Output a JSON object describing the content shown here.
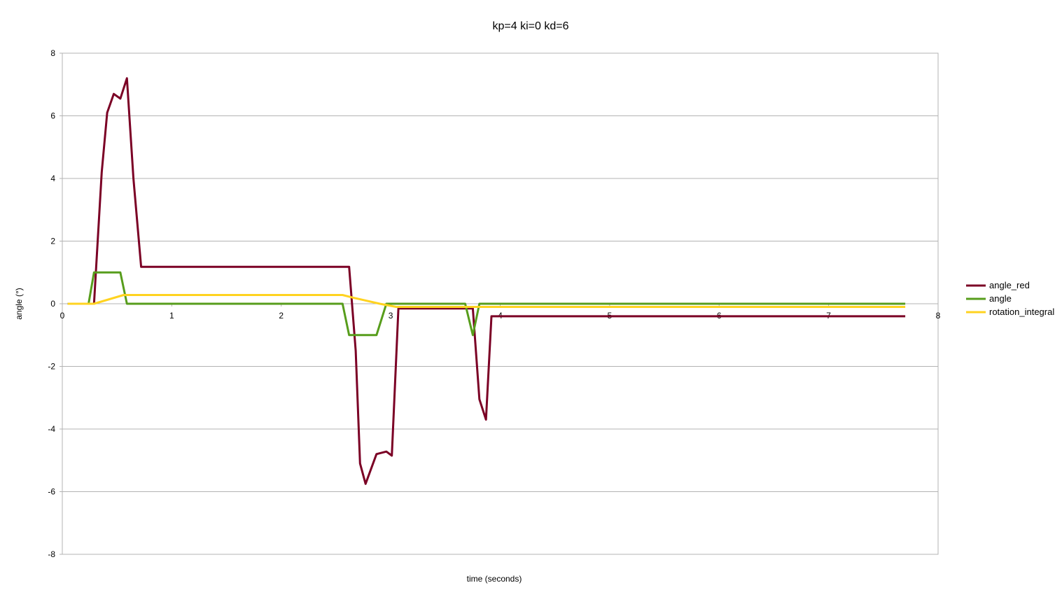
{
  "chart_data": {
    "type": "line",
    "title": "kp=4 ki=0 kd=6",
    "xlabel": "time (seconds)",
    "ylabel": "angle (°)",
    "xlim": [
      0,
      8
    ],
    "ylim": [
      -8,
      8
    ],
    "xticks": [
      0,
      1,
      2,
      3,
      4,
      5,
      6,
      7,
      8
    ],
    "yticks": [
      -8,
      -6,
      -4,
      -2,
      0,
      2,
      4,
      6,
      8
    ],
    "grid": "horizontal",
    "legend_position": "right",
    "series": [
      {
        "name": "angle_red",
        "color": "#7b0025",
        "x": [
          0.05,
          0.29,
          0.36,
          0.41,
          0.47,
          0.53,
          0.59,
          0.65,
          0.72,
          2.62,
          2.68,
          2.72,
          2.77,
          2.87,
          2.96,
          3.01,
          3.07,
          3.75,
          3.81,
          3.87,
          3.92,
          7.7
        ],
        "y": [
          0,
          0,
          4.2,
          6.1,
          6.7,
          6.55,
          7.2,
          4.0,
          1.18,
          1.18,
          -1.5,
          -5.1,
          -5.75,
          -4.8,
          -4.72,
          -4.85,
          -0.15,
          -0.15,
          -3.05,
          -3.7,
          -0.4,
          -0.4
        ]
      },
      {
        "name": "angle",
        "color": "#579d1c",
        "x": [
          0.05,
          0.24,
          0.29,
          0.53,
          0.59,
          2.56,
          2.62,
          2.87,
          2.96,
          3.68,
          3.75,
          3.81,
          7.7
        ],
        "y": [
          0,
          0,
          1,
          1,
          0,
          0,
          -1,
          -1,
          0,
          0,
          -1,
          0,
          0
        ]
      },
      {
        "name": "rotation_integral",
        "color": "#ffd320",
        "x": [
          0.05,
          0.29,
          0.56,
          2.56,
          2.65,
          2.9,
          3.05,
          7.7
        ],
        "y": [
          0,
          0,
          0.28,
          0.28,
          0.2,
          0,
          -0.1,
          -0.1
        ]
      }
    ]
  }
}
